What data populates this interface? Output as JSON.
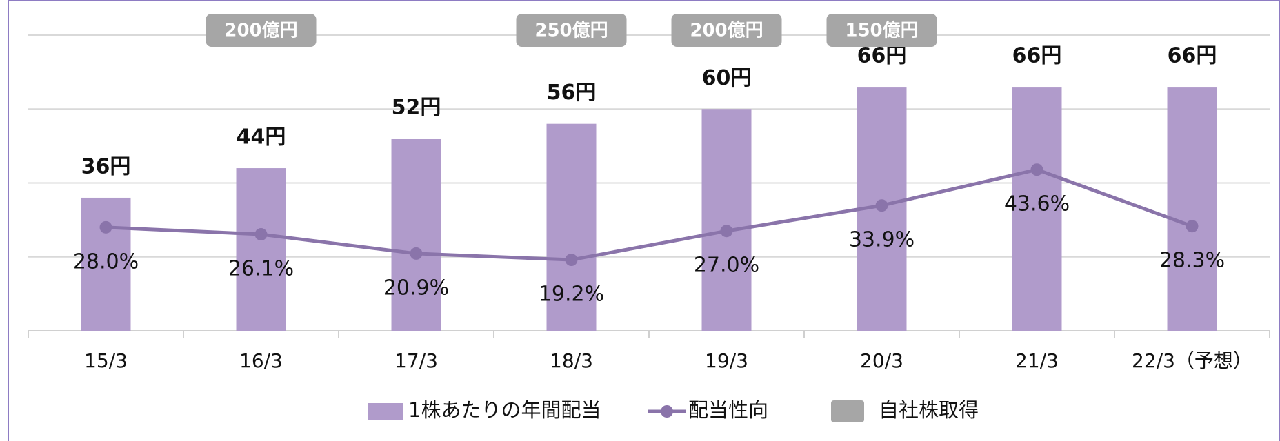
{
  "chart_data": {
    "type": "bar-line",
    "categories": [
      "15/3",
      "16/3",
      "17/3",
      "18/3",
      "19/3",
      "20/3",
      "21/3",
      "22/3（予想）"
    ],
    "series": [
      {
        "name": "1株あたりの年間配当",
        "type": "bar",
        "color": "#b09bcb",
        "values": [
          36,
          44,
          52,
          56,
          60,
          66,
          66,
          66
        ],
        "value_labels": [
          "36円",
          "44円",
          "52円",
          "56円",
          "60円",
          "66円",
          "66円",
          "66円"
        ]
      },
      {
        "name": "配当性向",
        "type": "line",
        "axis": "y2",
        "color": "#8a74aa",
        "values": [
          28.0,
          26.1,
          20.9,
          19.2,
          27.0,
          33.9,
          43.6,
          28.3
        ],
        "value_labels": [
          "28.0%",
          "26.1%",
          "20.9%",
          "19.2%",
          "27.0%",
          "33.9%",
          "43.6%",
          "28.3%"
        ]
      }
    ],
    "buybacks": {
      "name": "自社株取得",
      "color": "#a6a6a6",
      "labels": [
        null,
        "200億円",
        null,
        "250億円",
        "200億円",
        "150億円",
        null,
        null
      ]
    },
    "ylim": [
      0,
      80
    ],
    "yticks": [
      0,
      20,
      40,
      60,
      80
    ],
    "y2lim": [
      0,
      80
    ],
    "grid": true
  }
}
